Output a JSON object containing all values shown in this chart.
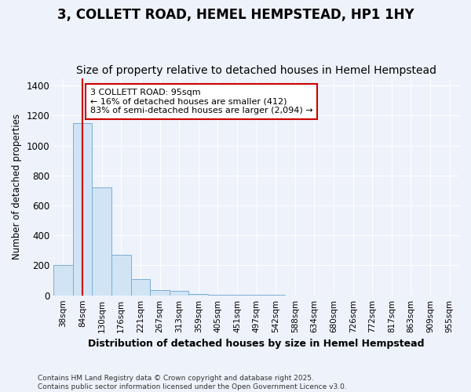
{
  "title": "3, COLLETT ROAD, HEMEL HEMPSTEAD, HP1 1HY",
  "subtitle": "Size of property relative to detached houses in Hemel Hempstead",
  "xlabel": "Distribution of detached houses by size in Hemel Hempstead",
  "ylabel": "Number of detached properties",
  "categories": [
    "38sqm",
    "84sqm",
    "130sqm",
    "176sqm",
    "221sqm",
    "267sqm",
    "313sqm",
    "359sqm",
    "405sqm",
    "451sqm",
    "497sqm",
    "542sqm",
    "588sqm",
    "634sqm",
    "680sqm",
    "726sqm",
    "772sqm",
    "817sqm",
    "863sqm",
    "909sqm",
    "955sqm"
  ],
  "values": [
    200,
    1150,
    720,
    270,
    110,
    35,
    30,
    10,
    5,
    2,
    2,
    2,
    0,
    0,
    0,
    0,
    0,
    0,
    0,
    0,
    0
  ],
  "bar_color": "#d0e4f5",
  "bar_edge_color": "#7aafd4",
  "red_line_index": 1,
  "annotation_text": "3 COLLETT ROAD: 95sqm\n← 16% of detached houses are smaller (412)\n83% of semi-detached houses are larger (2,094) →",
  "annotation_box_color": "white",
  "annotation_box_edge_color": "#cc0000",
  "ylim": [
    0,
    1450
  ],
  "yticks": [
    0,
    200,
    400,
    600,
    800,
    1000,
    1200,
    1400
  ],
  "footer": "Contains HM Land Registry data © Crown copyright and database right 2025.\nContains public sector information licensed under the Open Government Licence v3.0.",
  "background_color": "#eef2fa",
  "plot_background": "#eef2fa",
  "grid_color": "white",
  "title_fontsize": 12,
  "subtitle_fontsize": 10,
  "annotation_fontsize": 8
}
